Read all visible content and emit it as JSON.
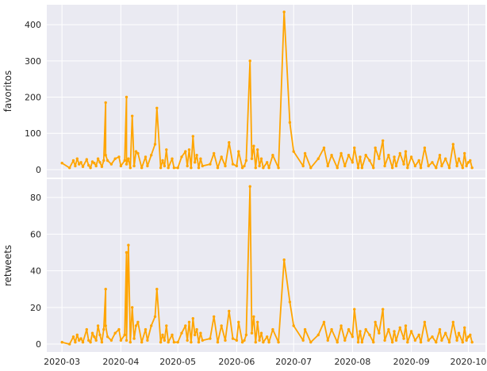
{
  "figure": {
    "background": "#ffffff",
    "panel_color": "#EAEAF2",
    "grid_color": "#ffffff",
    "line_color": "#FFA500"
  },
  "chart_data": [
    {
      "type": "line",
      "ylabel": "favoritos",
      "xlabel": "",
      "x_type": "date",
      "xlim": [
        "2020-02-22",
        "2020-10-10"
      ],
      "ylim": [
        -22,
        455
      ],
      "x_ticks": [
        "2020-03",
        "2020-04",
        "2020-05",
        "2020-06",
        "2020-07",
        "2020-08",
        "2020-09",
        "2020-10"
      ],
      "y_ticks": [
        0,
        100,
        200,
        300,
        400
      ],
      "grid": true,
      "legend": "none",
      "series": [
        {
          "x": [
            "2020-03-01",
            "2020-03-05",
            "2020-03-07",
            "2020-03-08",
            "2020-03-09",
            "2020-03-10",
            "2020-03-11",
            "2020-03-12",
            "2020-03-14",
            "2020-03-15",
            "2020-03-16",
            "2020-03-17",
            "2020-03-18",
            "2020-03-19",
            "2020-03-20",
            "2020-03-21",
            "2020-03-22",
            "2020-03-23",
            "2020-03-24",
            "2020-03-24",
            "2020-03-25",
            "2020-03-27",
            "2020-03-29",
            "2020-03-31",
            "2020-04-01",
            "2020-04-03",
            "2020-04-04",
            "2020-04-04",
            "2020-04-05",
            "2020-04-06",
            "2020-04-07",
            "2020-04-08",
            "2020-04-09",
            "2020-04-10",
            "2020-04-12",
            "2020-04-14",
            "2020-04-15",
            "2020-04-17",
            "2020-04-19",
            "2020-04-20",
            "2020-04-22",
            "2020-04-23",
            "2020-04-24",
            "2020-04-25",
            "2020-04-26",
            "2020-04-28",
            "2020-04-29",
            "2020-05-01",
            "2020-05-03",
            "2020-05-05",
            "2020-05-06",
            "2020-05-07",
            "2020-05-08",
            "2020-05-09",
            "2020-05-10",
            "2020-05-11",
            "2020-05-12",
            "2020-05-13",
            "2020-05-14",
            "2020-05-18",
            "2020-05-20",
            "2020-05-22",
            "2020-05-24",
            "2020-05-26",
            "2020-05-28",
            "2020-05-30",
            "2020-06-01",
            "2020-06-02",
            "2020-06-04",
            "2020-06-05",
            "2020-06-06",
            "2020-06-08",
            "2020-06-09",
            "2020-06-10",
            "2020-06-11",
            "2020-06-12",
            "2020-06-13",
            "2020-06-14",
            "2020-06-15",
            "2020-06-17",
            "2020-06-18",
            "2020-06-20",
            "2020-06-23",
            "2020-06-26",
            "2020-06-29",
            "2020-07-01",
            "2020-07-06",
            "2020-07-07",
            "2020-07-10",
            "2020-07-14",
            "2020-07-17",
            "2020-07-19",
            "2020-07-21",
            "2020-07-24",
            "2020-07-26",
            "2020-07-28",
            "2020-07-30",
            "2020-08-01",
            "2020-08-02",
            "2020-08-04",
            "2020-08-05",
            "2020-08-06",
            "2020-08-08",
            "2020-08-10",
            "2020-08-12",
            "2020-08-13",
            "2020-08-15",
            "2020-08-17",
            "2020-08-18",
            "2020-08-20",
            "2020-08-22",
            "2020-08-23",
            "2020-08-24",
            "2020-08-26",
            "2020-08-28",
            "2020-08-29",
            "2020-08-30",
            "2020-09-01",
            "2020-09-03",
            "2020-09-05",
            "2020-09-06",
            "2020-09-08",
            "2020-09-10",
            "2020-09-12",
            "2020-09-14",
            "2020-09-16",
            "2020-09-17",
            "2020-09-19",
            "2020-09-21",
            "2020-09-23",
            "2020-09-25",
            "2020-09-26",
            "2020-09-28",
            "2020-09-29",
            "2020-09-30",
            "2020-10-01",
            "2020-10-02",
            "2020-10-03"
          ],
          "values": [
            18,
            5,
            25,
            10,
            30,
            15,
            20,
            8,
            28,
            12,
            5,
            22,
            18,
            10,
            30,
            20,
            8,
            25,
            185,
            40,
            25,
            15,
            30,
            35,
            10,
            25,
            200,
            15,
            30,
            5,
            148,
            10,
            50,
            45,
            5,
            35,
            10,
            40,
            70,
            170,
            5,
            25,
            10,
            55,
            5,
            30,
            5,
            5,
            35,
            50,
            10,
            55,
            5,
            92,
            20,
            40,
            5,
            30,
            10,
            15,
            45,
            5,
            35,
            10,
            75,
            15,
            10,
            50,
            5,
            10,
            25,
            300,
            30,
            65,
            5,
            55,
            10,
            30,
            5,
            20,
            5,
            40,
            5,
            435,
            130,
            50,
            10,
            45,
            5,
            30,
            60,
            10,
            40,
            5,
            45,
            10,
            40,
            20,
            60,
            5,
            35,
            5,
            40,
            25,
            5,
            60,
            30,
            80,
            10,
            40,
            5,
            35,
            10,
            45,
            15,
            50,
            5,
            35,
            10,
            25,
            5,
            60,
            10,
            20,
            5,
            40,
            10,
            30,
            5,
            70,
            10,
            30,
            5,
            45,
            10,
            20,
            25,
            5
          ],
          "color": "#FFA500"
        }
      ]
    },
    {
      "type": "line",
      "ylabel": "retweets",
      "xlabel": "",
      "x_type": "date",
      "xlim": [
        "2020-02-22",
        "2020-10-10"
      ],
      "ylim": [
        -4.3,
        90
      ],
      "x_ticks": [
        "2020-03",
        "2020-04",
        "2020-05",
        "2020-06",
        "2020-07",
        "2020-08",
        "2020-09",
        "2020-10"
      ],
      "y_ticks": [
        0,
        20,
        40,
        60,
        80
      ],
      "grid": true,
      "legend": "none",
      "series": [
        {
          "x": [
            "2020-03-01",
            "2020-03-05",
            "2020-03-07",
            "2020-03-08",
            "2020-03-09",
            "2020-03-10",
            "2020-03-11",
            "2020-03-12",
            "2020-03-14",
            "2020-03-15",
            "2020-03-16",
            "2020-03-17",
            "2020-03-18",
            "2020-03-19",
            "2020-03-20",
            "2020-03-21",
            "2020-03-22",
            "2020-03-23",
            "2020-03-24",
            "2020-03-24",
            "2020-03-25",
            "2020-03-27",
            "2020-03-29",
            "2020-03-31",
            "2020-04-01",
            "2020-04-03",
            "2020-04-04",
            "2020-04-04",
            "2020-04-05",
            "2020-04-06",
            "2020-04-07",
            "2020-04-08",
            "2020-04-09",
            "2020-04-10",
            "2020-04-12",
            "2020-04-14",
            "2020-04-15",
            "2020-04-17",
            "2020-04-19",
            "2020-04-20",
            "2020-04-22",
            "2020-04-23",
            "2020-04-24",
            "2020-04-25",
            "2020-04-26",
            "2020-04-28",
            "2020-04-29",
            "2020-05-01",
            "2020-05-03",
            "2020-05-05",
            "2020-05-06",
            "2020-05-07",
            "2020-05-08",
            "2020-05-09",
            "2020-05-10",
            "2020-05-11",
            "2020-05-12",
            "2020-05-13",
            "2020-05-14",
            "2020-05-18",
            "2020-05-20",
            "2020-05-22",
            "2020-05-24",
            "2020-05-26",
            "2020-05-28",
            "2020-05-30",
            "2020-06-01",
            "2020-06-02",
            "2020-06-04",
            "2020-06-05",
            "2020-06-06",
            "2020-06-08",
            "2020-06-09",
            "2020-06-10",
            "2020-06-11",
            "2020-06-12",
            "2020-06-13",
            "2020-06-14",
            "2020-06-15",
            "2020-06-17",
            "2020-06-18",
            "2020-06-20",
            "2020-06-23",
            "2020-06-26",
            "2020-06-29",
            "2020-07-01",
            "2020-07-06",
            "2020-07-07",
            "2020-07-10",
            "2020-07-14",
            "2020-07-17",
            "2020-07-19",
            "2020-07-21",
            "2020-07-24",
            "2020-07-26",
            "2020-07-28",
            "2020-07-30",
            "2020-08-01",
            "2020-08-02",
            "2020-08-04",
            "2020-08-05",
            "2020-08-06",
            "2020-08-08",
            "2020-08-10",
            "2020-08-12",
            "2020-08-13",
            "2020-08-15",
            "2020-08-17",
            "2020-08-18",
            "2020-08-20",
            "2020-08-22",
            "2020-08-23",
            "2020-08-24",
            "2020-08-26",
            "2020-08-28",
            "2020-08-29",
            "2020-08-30",
            "2020-09-01",
            "2020-09-03",
            "2020-09-05",
            "2020-09-06",
            "2020-09-08",
            "2020-09-10",
            "2020-09-12",
            "2020-09-14",
            "2020-09-16",
            "2020-09-17",
            "2020-09-19",
            "2020-09-21",
            "2020-09-23",
            "2020-09-25",
            "2020-09-26",
            "2020-09-28",
            "2020-09-29",
            "2020-09-30",
            "2020-10-01",
            "2020-10-02",
            "2020-10-03"
          ],
          "values": [
            1,
            0,
            4,
            1,
            5,
            2,
            3,
            1,
            8,
            2,
            1,
            6,
            4,
            2,
            10,
            5,
            1,
            8,
            30,
            10,
            4,
            2,
            6,
            8,
            2,
            5,
            50,
            2,
            54,
            1,
            20,
            3,
            10,
            12,
            1,
            8,
            2,
            10,
            15,
            30,
            1,
            5,
            2,
            10,
            1,
            5,
            1,
            1,
            6,
            10,
            2,
            12,
            1,
            14,
            5,
            8,
            1,
            6,
            2,
            3,
            15,
            1,
            10,
            2,
            18,
            3,
            2,
            12,
            1,
            2,
            5,
            86,
            6,
            15,
            1,
            12,
            2,
            6,
            1,
            4,
            1,
            8,
            1,
            46,
            23,
            10,
            2,
            8,
            1,
            5,
            12,
            2,
            8,
            1,
            10,
            2,
            8,
            4,
            19,
            1,
            7,
            1,
            8,
            5,
            1,
            12,
            6,
            19,
            2,
            8,
            1,
            7,
            2,
            9,
            3,
            10,
            1,
            7,
            2,
            5,
            1,
            12,
            2,
            4,
            1,
            8,
            2,
            6,
            1,
            12,
            2,
            6,
            1,
            9,
            2,
            4,
            5,
            1
          ],
          "color": "#FFA500"
        }
      ]
    }
  ]
}
